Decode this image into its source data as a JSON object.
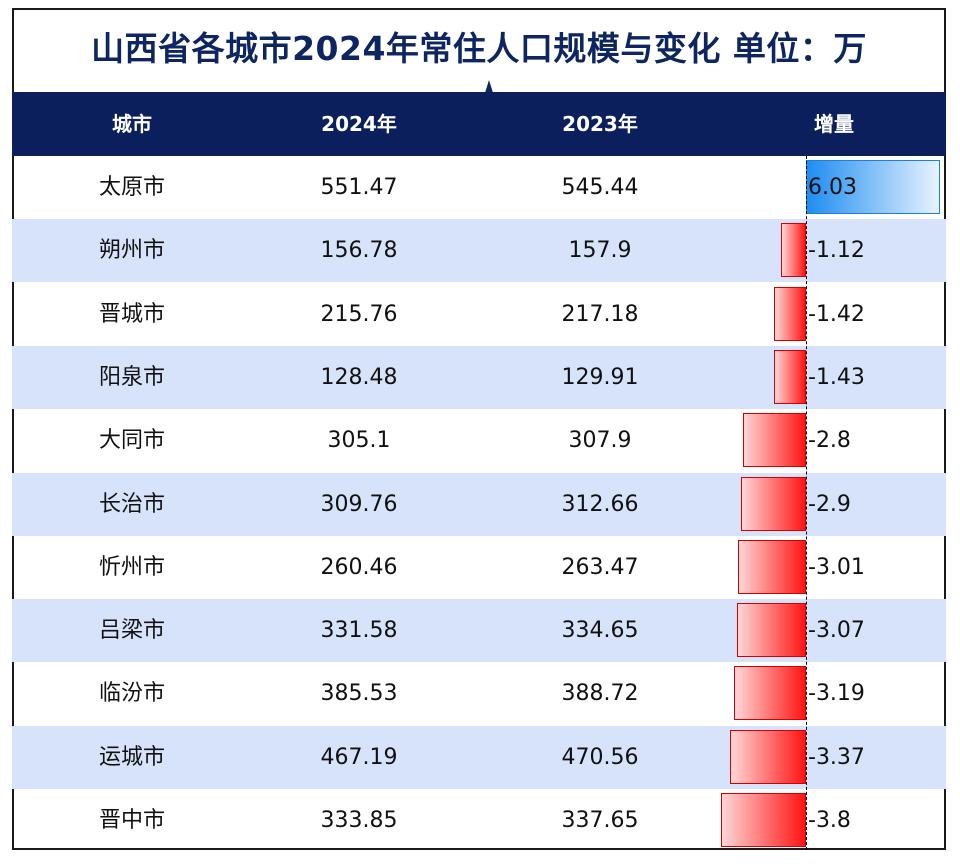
{
  "title": "山西省各城市2024年常住人口规模与变化   单位：万",
  "headers": [
    "城市",
    "2024年",
    "2023年",
    "增量"
  ],
  "chart_data": {
    "type": "table",
    "title": "山西省各城市2024年常住人口规模与变化   单位：万",
    "columns": [
      "城市",
      "2024年",
      "2023年",
      "增量"
    ],
    "rows": [
      {
        "city": "太原市",
        "y2024": "551.47",
        "y2023": "545.44",
        "delta": "6.03"
      },
      {
        "city": "朔州市",
        "y2024": "156.78",
        "y2023": "157.9",
        "delta": "-1.12"
      },
      {
        "city": "晋城市",
        "y2024": "215.76",
        "y2023": "217.18",
        "delta": "-1.42"
      },
      {
        "city": "阳泉市",
        "y2024": "128.48",
        "y2023": "129.91",
        "delta": "-1.43"
      },
      {
        "city": "大同市",
        "y2024": "305.1",
        "y2023": "307.9",
        "delta": "-2.8"
      },
      {
        "city": "长治市",
        "y2024": "309.76",
        "y2023": "312.66",
        "delta": "-2.9"
      },
      {
        "city": "忻州市",
        "y2024": "260.46",
        "y2023": "263.47",
        "delta": "-3.01"
      },
      {
        "city": "吕梁市",
        "y2024": "331.58",
        "y2023": "334.65",
        "delta": "-3.07"
      },
      {
        "city": "临汾市",
        "y2024": "385.53",
        "y2023": "388.72",
        "delta": "-3.19"
      },
      {
        "city": "运城市",
        "y2024": "467.19",
        "y2023": "470.56",
        "delta": "-3.37"
      },
      {
        "city": "晋中市",
        "y2024": "333.85",
        "y2023": "337.65",
        "delta": "-3.8"
      }
    ],
    "colors": {
      "header_bg": "#0b1f5c",
      "stripe": "#d6e3fb",
      "negative": "#ff1414",
      "positive": "#1e8df0"
    }
  }
}
